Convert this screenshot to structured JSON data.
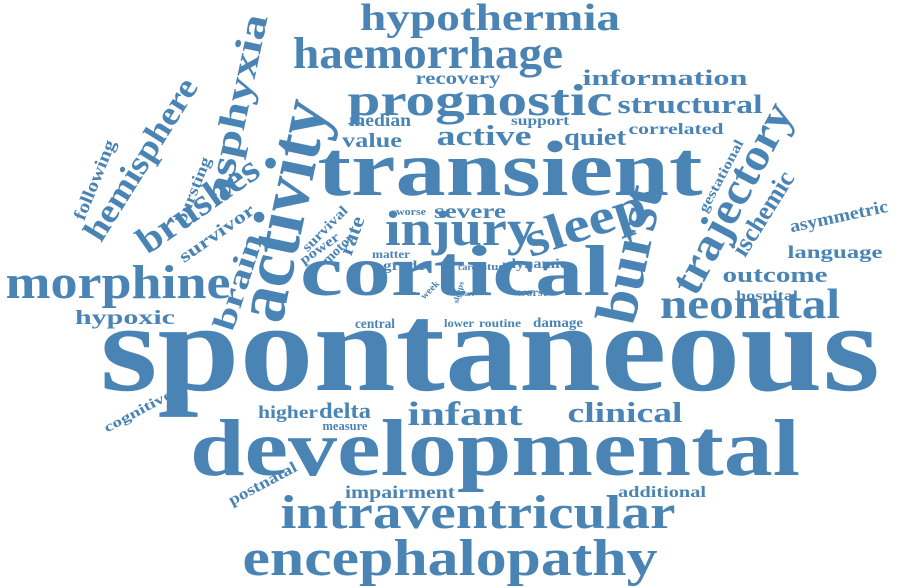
{
  "color": "#4a84b5",
  "words": [
    "spontaneous",
    "developmental",
    "transient",
    "cortical",
    "activity",
    "encephalopathy",
    "intraventricular",
    "prognostic",
    "haemorrhage",
    "hypothermia",
    "morphine",
    "burst",
    "injury",
    "sleep",
    "trajectory",
    "neonatal",
    "asphyxia",
    "brushes",
    "hemisphere",
    "infant",
    "clinical",
    "structural",
    "information",
    "brain",
    "outcome",
    "ischemic",
    "language",
    "asymmetric",
    "active",
    "quiet",
    "severe",
    "delta",
    "higher",
    "impairment",
    "recovery",
    "value",
    "median",
    "hypoxic",
    "survivor",
    "following",
    "bursting",
    "rate",
    "cognitive",
    "postnatal",
    "additional",
    "correlated",
    "gestational",
    "support",
    "hospital",
    "dynamic",
    "grade",
    "matter",
    "central",
    "lower",
    "routine",
    "damage",
    "worst",
    "study",
    "care",
    "week",
    "power",
    "motor",
    "survival",
    "worse",
    "measure",
    "sleeps",
    "part"
  ]
}
